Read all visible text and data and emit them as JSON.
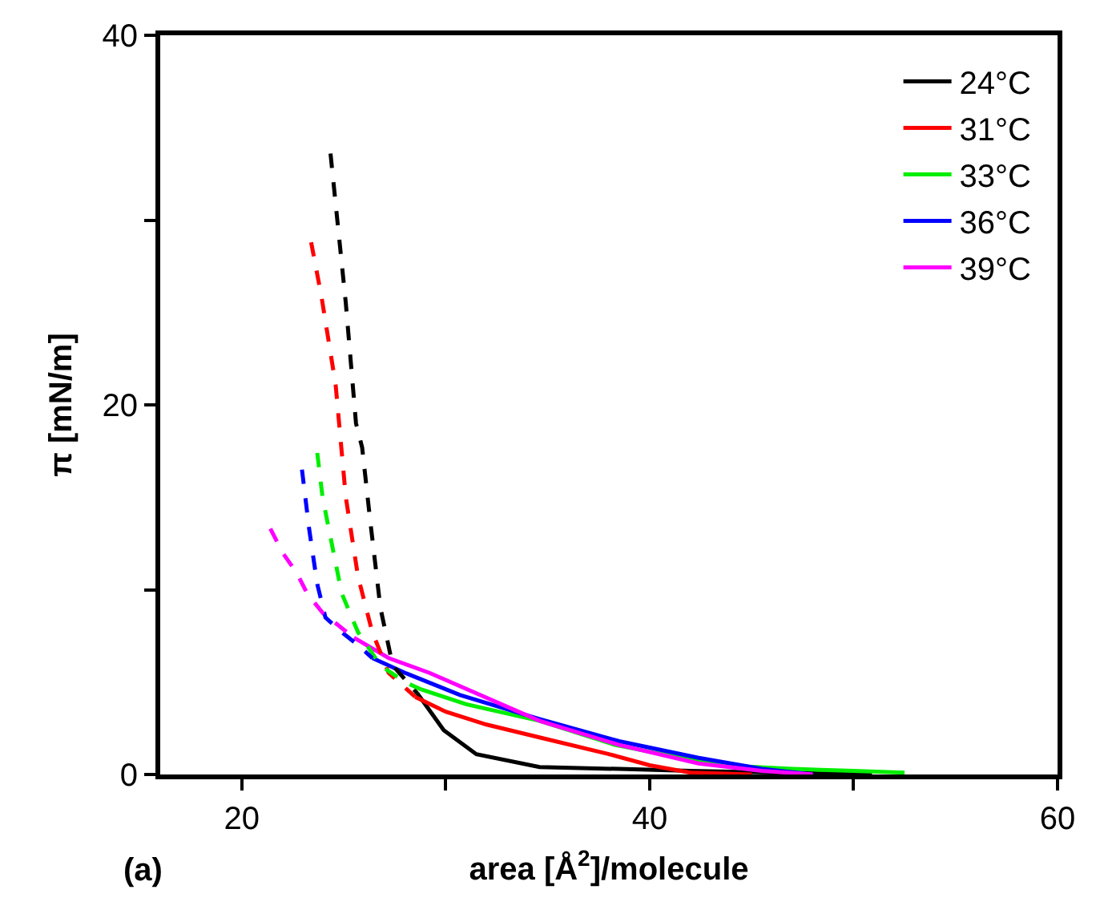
{
  "chart_data": {
    "type": "line",
    "xlabel": "area [Å$^{2}$]/molecule",
    "ylabel": "π [mN/m]",
    "annotations": [
      "(a)"
    ],
    "xlim": [
      16,
      60
    ],
    "ylim": [
      0,
      40
    ],
    "xticks": [
      20,
      {
        "value": 30,
        "label": null
      },
      40,
      {
        "value": 50,
        "label": null
      },
      60
    ],
    "yticks": [
      0,
      {
        "value": 10,
        "label": null
      },
      20,
      {
        "value": 30,
        "label": null
      },
      40
    ],
    "grid": false,
    "legend": "top right",
    "marker": "none",
    "series": [
      {
        "name": "24°C",
        "color": "#000000",
        "line_style": "solid",
        "x": [
          28.6,
          29.9,
          31.5,
          34.6,
          38.5,
          42,
          46.3,
          50.9
        ],
        "values": [
          4.4,
          2.4,
          1.1,
          0.4,
          0.3,
          0.2,
          0.1,
          0
        ]
      },
      {
        "name": "31°C",
        "color": "#ff0000",
        "line_style": "solid",
        "x": [
          28.5,
          30,
          32,
          35,
          38,
          40,
          42,
          45
        ],
        "values": [
          4.2,
          3.4,
          2.7,
          1.9,
          1.1,
          0.5,
          0.1,
          0
        ]
      },
      {
        "name": "33°C",
        "color": "#00ee00",
        "line_style": "solid",
        "x": [
          28.8,
          31,
          34.6,
          38.3,
          43.4,
          47,
          50,
          52.5
        ],
        "values": [
          4.6,
          3.8,
          2.9,
          1.6,
          0.5,
          0.3,
          0.2,
          0.1
        ]
      },
      {
        "name": "36°C",
        "color": "#0000ff",
        "line_style": "solid",
        "x": [
          26.4,
          28,
          30.7,
          34.6,
          38.5,
          42.4,
          45.5,
          48
        ],
        "values": [
          6.3,
          5.5,
          4.3,
          3.0,
          1.8,
          0.9,
          0.3,
          0
        ]
      },
      {
        "name": "39°C",
        "color": "#ff00ff",
        "line_style": "solid",
        "x": [
          25.5,
          27.2,
          29.2,
          34.6,
          38.5,
          42.4,
          45.5,
          48
        ],
        "values": [
          7.4,
          6.3,
          5.5,
          2.9,
          1.6,
          0.6,
          0.2,
          0
        ]
      },
      {
        "color": "#000000",
        "line_style": "dashed",
        "x": [
          24.35,
          25.1,
          25.6,
          25.9,
          26.3,
          26.8,
          27.4,
          28.6
        ],
        "values": [
          33.6,
          25.5,
          19.0,
          17.7,
          13.7,
          9.0,
          5.9,
          4.4
        ]
      },
      {
        "color": "#ff0000",
        "line_style": "dashed",
        "x": [
          23.4,
          23.9,
          24.6,
          25.1,
          25.7,
          26.4,
          27.2,
          28.5
        ],
        "values": [
          28.8,
          25.9,
          21.1,
          15.0,
          10.7,
          7.7,
          5.5,
          4.2
        ]
      },
      {
        "color": "#00ee00",
        "line_style": "dashed",
        "x": [
          23.7,
          23.96,
          24.5,
          24.9,
          25.7,
          26.8,
          28,
          28.8
        ],
        "values": [
          17.4,
          15.0,
          12.0,
          9.8,
          7.7,
          5.9,
          5.0,
          4.6
        ]
      },
      {
        "color": "#0000ff",
        "line_style": "dashed",
        "x": [
          22.95,
          23.3,
          23.7,
          24.1,
          24.9,
          25.7,
          26.4
        ],
        "values": [
          16.5,
          13.3,
          10.3,
          8.5,
          7.7,
          7.0,
          6.3
        ]
      },
      {
        "color": "#ff00ff",
        "line_style": "dashed",
        "x": [
          21.4,
          22,
          22.7,
          23.2,
          24,
          24.7,
          25.5
        ],
        "values": [
          13.3,
          12.0,
          10.9,
          9.8,
          8.7,
          8.1,
          7.4
        ]
      }
    ]
  }
}
